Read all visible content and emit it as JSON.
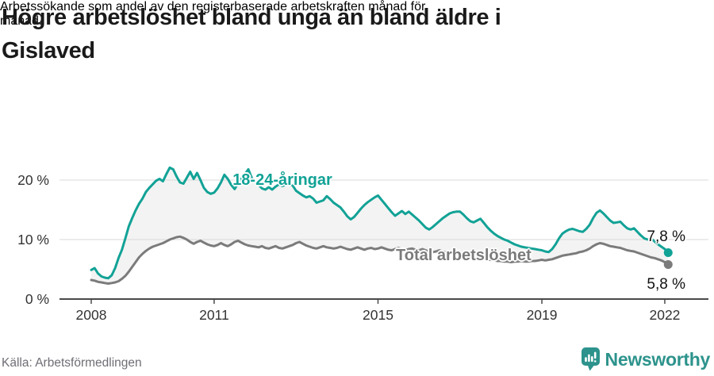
{
  "header": {
    "title_lines": [
      "Högre arbetslöshet bland unga än bland äldre i",
      "Gislaved"
    ],
    "subtitle_lines": [
      "Arbetssökande som andel av den registerbaserade arbetskraften månad för",
      "månad."
    ]
  },
  "chart": {
    "series_labels": {
      "young": "18-24-åringar",
      "total": "Total arbetslöshet"
    },
    "end_labels": {
      "young": "7,8 %",
      "total": "5,8 %"
    }
  },
  "footer": {
    "source": "Källa: Arbetsförmedlingen",
    "brand": "Newsworthy"
  },
  "colors": {
    "young_line": "#12A296",
    "total_line": "#7B7B7B",
    "area_fill": "#F3F3F3",
    "gridline": "#D8D8D8",
    "axis": "#4A4A4A",
    "tick_text": "#333333",
    "brand_teal": "#2D938C"
  },
  "chart_data": {
    "type": "line",
    "title": "Högre arbetslöshet bland unga än bland äldre i Gislaved",
    "subtitle": "Arbetssökande som andel av den registerbaserade arbetskraften månad för månad.",
    "source": "Källa: Arbetsförmedlingen",
    "x_unit": "monthly, decimal years",
    "x_start": 2008.0,
    "x_step": 0.0833333,
    "ylim": [
      0,
      24
    ],
    "grid": "horizontal",
    "area_fill_between_series": true,
    "legend_position": "inline-labels",
    "yticks": [
      {
        "label": "20 %",
        "value": 20
      },
      {
        "label": "10 %",
        "value": 10
      },
      {
        "label": "0 %",
        "value": 0
      }
    ],
    "xticks": [
      {
        "label": "2008",
        "year": 2008
      },
      {
        "label": "2011",
        "year": 2011
      },
      {
        "label": "2015",
        "year": 2015
      },
      {
        "label": "2019",
        "year": 2019
      },
      {
        "label": "2022",
        "year": 2022
      }
    ],
    "series": [
      {
        "name": "18-24-åringar",
        "color": "#12A296",
        "end_value_label": "7,8 %",
        "values": [
          4.9,
          5.2,
          4.3,
          3.8,
          3.6,
          3.5,
          4.0,
          5.2,
          6.9,
          8.3,
          10.2,
          12.2,
          13.6,
          14.9,
          16.0,
          16.9,
          18.0,
          18.7,
          19.3,
          19.9,
          20.2,
          19.8,
          21.0,
          22.1,
          21.8,
          20.6,
          19.6,
          19.4,
          20.4,
          21.4,
          20.2,
          21.2,
          20.0,
          18.7,
          18.0,
          17.7,
          17.9,
          18.6,
          19.6,
          20.9,
          20.2,
          19.2,
          18.5,
          19.4,
          20.3,
          21.0,
          21.8,
          20.4,
          19.6,
          19.2,
          18.6,
          18.4,
          18.8,
          18.4,
          18.9,
          19.3,
          19.0,
          19.2,
          19.4,
          19.1,
          18.2,
          17.8,
          17.4,
          17.1,
          17.3,
          16.9,
          16.2,
          16.4,
          16.6,
          17.3,
          16.8,
          16.2,
          15.8,
          15.4,
          14.7,
          13.9,
          13.4,
          13.8,
          14.5,
          15.2,
          15.8,
          16.3,
          16.7,
          17.1,
          17.4,
          16.7,
          16.0,
          15.3,
          14.6,
          14.0,
          14.4,
          14.8,
          14.3,
          14.7,
          14.2,
          13.7,
          13.2,
          12.6,
          12.0,
          11.7,
          12.1,
          12.6,
          13.1,
          13.6,
          14.0,
          14.4,
          14.6,
          14.7,
          14.7,
          14.2,
          13.6,
          13.1,
          12.9,
          13.2,
          13.5,
          12.8,
          12.1,
          11.5,
          11.0,
          10.6,
          10.3,
          10.0,
          9.8,
          9.5,
          9.2,
          9.0,
          8.8,
          8.7,
          8.6,
          8.5,
          8.4,
          8.3,
          8.2,
          8.0,
          7.9,
          8.4,
          9.2,
          10.2,
          11.0,
          11.4,
          11.7,
          11.8,
          11.6,
          11.4,
          11.3,
          11.8,
          12.5,
          13.6,
          14.5,
          14.9,
          14.4,
          13.8,
          13.2,
          12.8,
          12.9,
          13.0,
          12.4,
          11.9,
          11.7,
          11.9,
          11.3,
          10.7,
          10.2,
          10.0,
          10.2,
          9.7,
          9.2,
          8.8,
          8.4,
          7.8
        ]
      },
      {
        "name": "Total arbetslöshet",
        "color": "#7B7B7B",
        "end_value_label": "5,8 %",
        "values": [
          3.2,
          3.1,
          2.9,
          2.8,
          2.7,
          2.6,
          2.7,
          2.8,
          3.0,
          3.4,
          3.9,
          4.6,
          5.4,
          6.2,
          7.0,
          7.6,
          8.1,
          8.5,
          8.8,
          9.0,
          9.2,
          9.4,
          9.7,
          10.0,
          10.2,
          10.4,
          10.5,
          10.3,
          10.0,
          9.6,
          9.3,
          9.6,
          9.8,
          9.5,
          9.2,
          9.0,
          8.9,
          9.1,
          9.4,
          9.1,
          8.9,
          9.2,
          9.6,
          9.8,
          9.5,
          9.2,
          9.0,
          8.9,
          8.8,
          8.7,
          8.9,
          8.6,
          8.5,
          8.7,
          8.9,
          8.6,
          8.5,
          8.7,
          8.9,
          9.1,
          9.4,
          9.6,
          9.3,
          9.0,
          8.8,
          8.6,
          8.5,
          8.7,
          8.9,
          8.7,
          8.6,
          8.5,
          8.6,
          8.8,
          8.6,
          8.4,
          8.3,
          8.5,
          8.7,
          8.5,
          8.3,
          8.5,
          8.6,
          8.4,
          8.5,
          8.7,
          8.5,
          8.3,
          8.2,
          8.4,
          8.6,
          8.4,
          8.2,
          8.4,
          8.5,
          8.3,
          8.2,
          8.4,
          8.2,
          8.0,
          7.9,
          8.0,
          8.2,
          8.0,
          7.8,
          7.7,
          7.6,
          7.5,
          7.4,
          7.3,
          7.2,
          7.0,
          6.9,
          6.8,
          6.9,
          6.8,
          6.7,
          6.6,
          6.5,
          6.4,
          6.4,
          6.3,
          6.3,
          6.2,
          6.3,
          6.3,
          6.4,
          6.3,
          6.3,
          6.4,
          6.4,
          6.5,
          6.6,
          6.5,
          6.6,
          6.7,
          6.9,
          7.1,
          7.3,
          7.4,
          7.5,
          7.6,
          7.7,
          7.9,
          8.0,
          8.2,
          8.5,
          8.9,
          9.2,
          9.4,
          9.3,
          9.1,
          8.9,
          8.8,
          8.7,
          8.6,
          8.4,
          8.2,
          8.1,
          8.0,
          7.8,
          7.6,
          7.4,
          7.2,
          7.0,
          6.9,
          6.7,
          6.5,
          6.2,
          5.8
        ]
      }
    ]
  }
}
